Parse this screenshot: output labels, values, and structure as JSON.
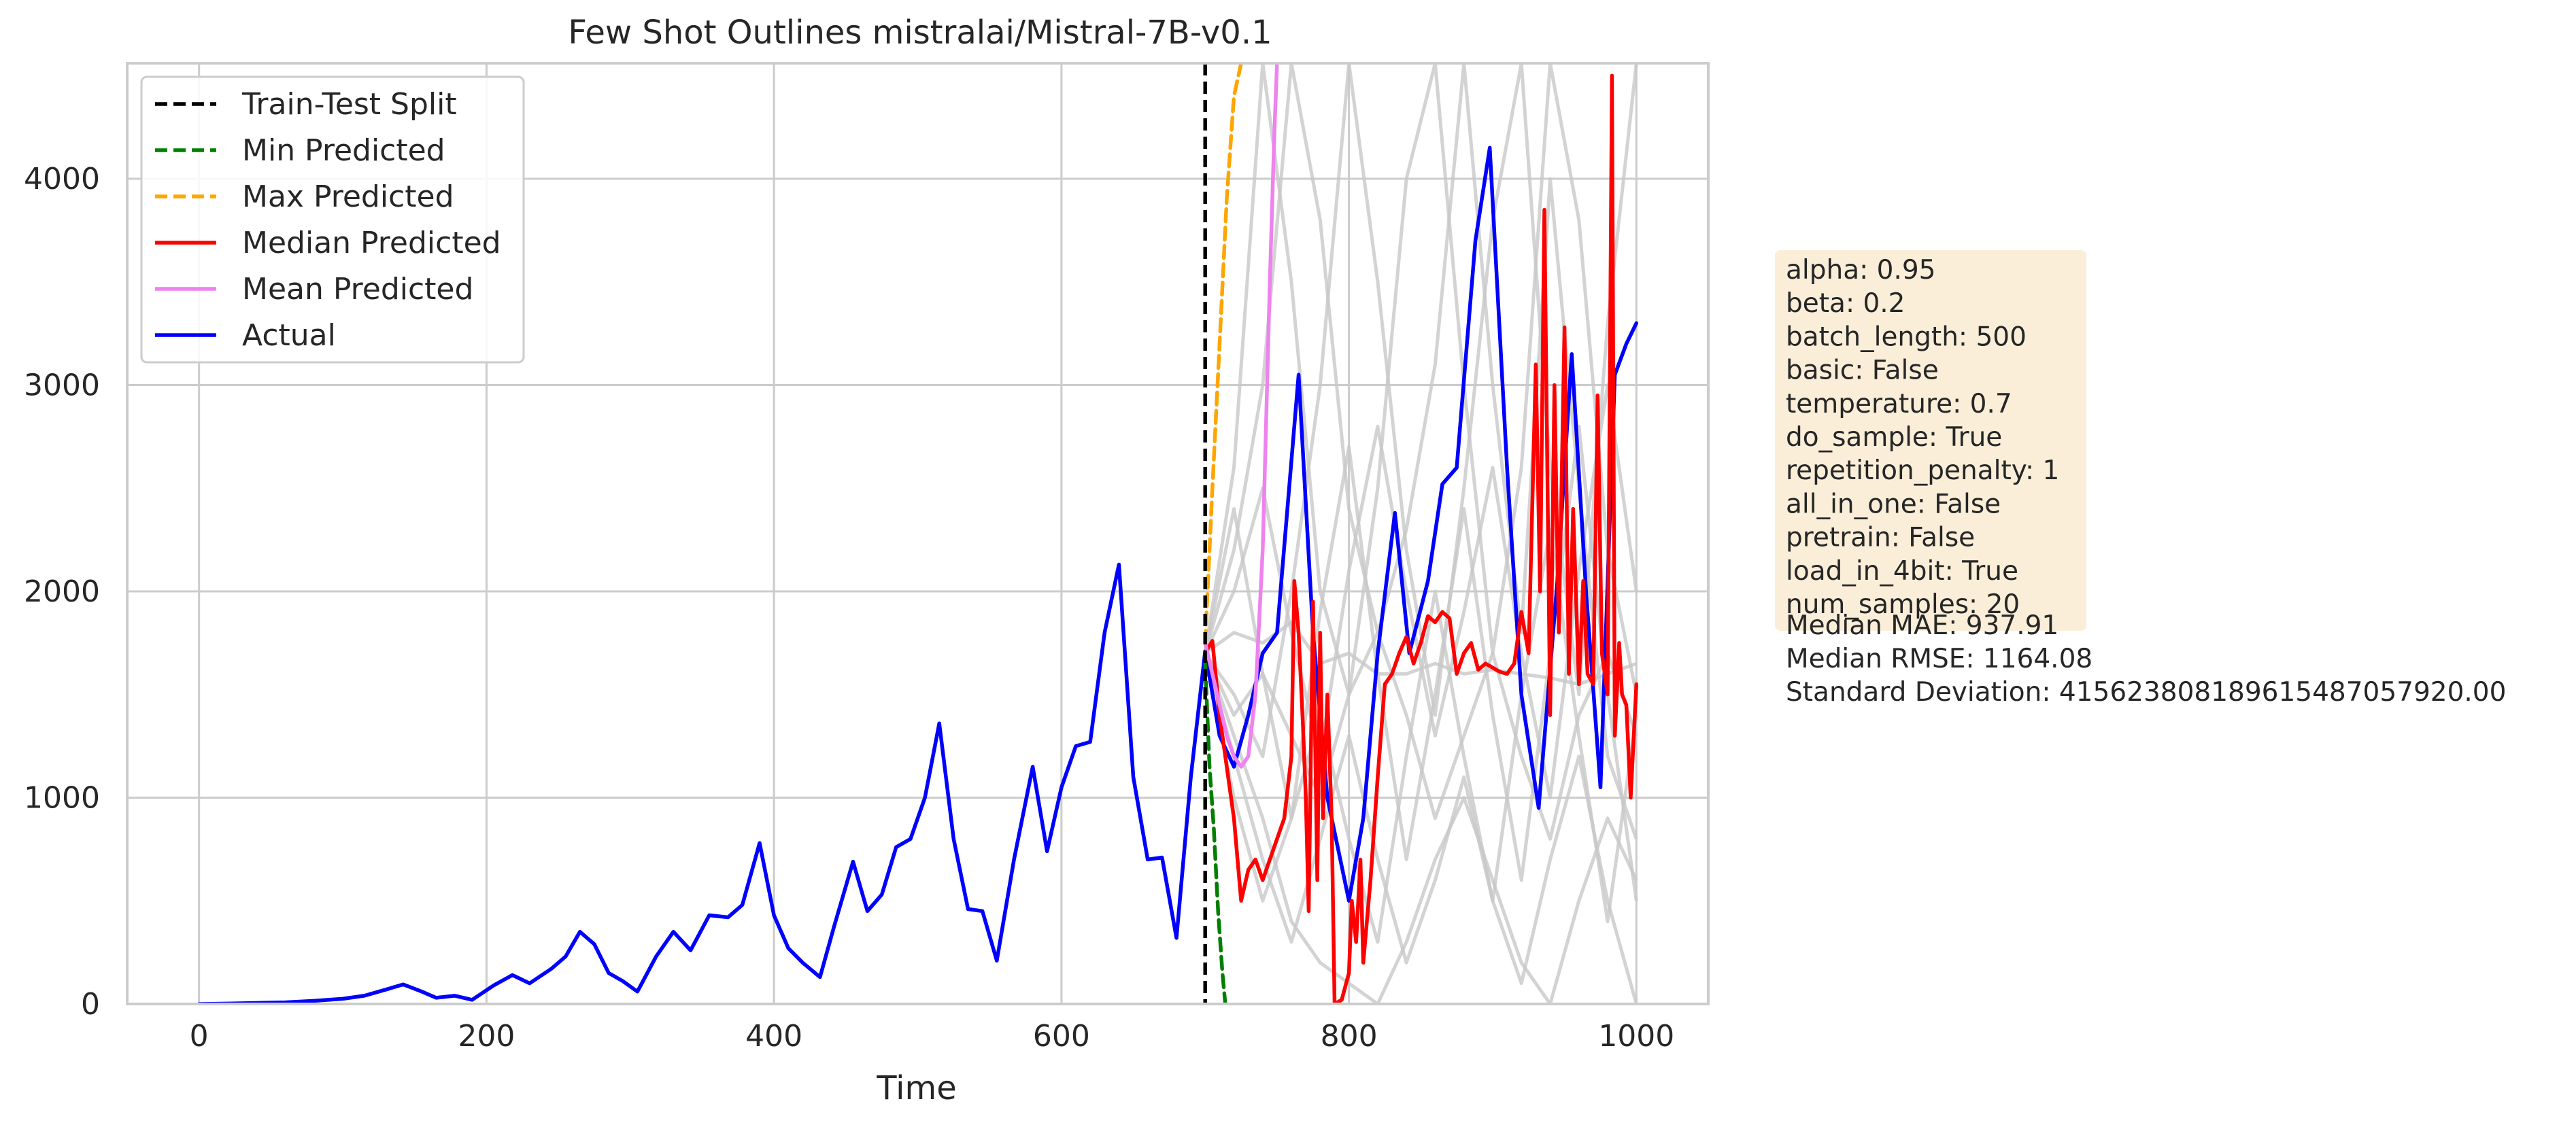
{
  "chart_data": {
    "type": "line",
    "title": "Few Shot Outlines mistralai/Mistral-7B-v0.1",
    "xlabel": "Time",
    "ylabel": "",
    "xlim": [
      -50,
      1050
    ],
    "ylim": [
      0,
      4560
    ],
    "xticks": [
      0,
      200,
      400,
      600,
      800,
      1000
    ],
    "yticks": [
      0,
      1000,
      2000,
      3000,
      4000
    ],
    "grid": true,
    "legend_position": "top-left",
    "split_x": 700,
    "legend": [
      {
        "label": "Train-Test Split",
        "color": "#000000",
        "style": "dashed"
      },
      {
        "label": "Min Predicted",
        "color": "#008000",
        "style": "dashed"
      },
      {
        "label": "Max Predicted",
        "color": "#ffa500",
        "style": "dashed"
      },
      {
        "label": "Median Predicted",
        "color": "#ff0000",
        "style": "solid"
      },
      {
        "label": "Mean Predicted",
        "color": "#ee82ee",
        "style": "solid"
      },
      {
        "label": "Actual",
        "color": "#0000ff",
        "style": "solid"
      }
    ],
    "series": [
      {
        "name": "Actual",
        "color": "#0000ff",
        "x": [
          0,
          20,
          40,
          60,
          80,
          100,
          115,
          130,
          142,
          155,
          165,
          178,
          190,
          205,
          218,
          230,
          245,
          255,
          265,
          275,
          285,
          295,
          305,
          318,
          330,
          342,
          355,
          368,
          378,
          390,
          400,
          410,
          420,
          432,
          442,
          455,
          465,
          475,
          485,
          495,
          505,
          515,
          525,
          535,
          545,
          555,
          567,
          580,
          590,
          600,
          610,
          620,
          630,
          640,
          650,
          660,
          670,
          680,
          690,
          700,
          710,
          720,
          730,
          740,
          750,
          765,
          775,
          785,
          800,
          810,
          820,
          832,
          842,
          855,
          865,
          875,
          888,
          898,
          910,
          920,
          932,
          945,
          955,
          965,
          975,
          985,
          993,
          1000
        ],
        "y": [
          0,
          2,
          5,
          8,
          15,
          25,
          40,
          70,
          95,
          60,
          30,
          40,
          20,
          90,
          140,
          100,
          170,
          230,
          350,
          290,
          150,
          110,
          60,
          230,
          350,
          260,
          430,
          420,
          480,
          780,
          430,
          270,
          200,
          130,
          380,
          690,
          450,
          530,
          760,
          800,
          1000,
          1360,
          800,
          460,
          450,
          210,
          700,
          1150,
          740,
          1050,
          1250,
          1270,
          1800,
          2130,
          1100,
          700,
          710,
          320,
          1100,
          1710,
          1300,
          1150,
          1400,
          1700,
          1800,
          3050,
          1800,
          1000,
          500,
          900,
          1700,
          2380,
          1700,
          2050,
          2520,
          2600,
          3700,
          4150,
          2600,
          1500,
          950,
          2050,
          3150,
          2000,
          1050,
          3050,
          3200,
          3300
        ]
      },
      {
        "name": "Median Predicted",
        "color": "#ff0000",
        "x": [
          700,
          705,
          710,
          715,
          720,
          725,
          730,
          735,
          740,
          745,
          750,
          755,
          760,
          762,
          765,
          768,
          770,
          772,
          775,
          778,
          780,
          782,
          785,
          788,
          790,
          795,
          800,
          802,
          805,
          808,
          810,
          815,
          820,
          825,
          830,
          835,
          840,
          845,
          850,
          855,
          860,
          865,
          870,
          875,
          880,
          885,
          890,
          895,
          900,
          905,
          910,
          915,
          920,
          925,
          930,
          933,
          936,
          940,
          943,
          946,
          950,
          953,
          956,
          960,
          963,
          966,
          970,
          973,
          976,
          980,
          983,
          985,
          988,
          990,
          993,
          996,
          1000
        ],
        "y": [
          1700,
          1760,
          1400,
          1150,
          900,
          500,
          650,
          700,
          600,
          700,
          800,
          900,
          1200,
          2050,
          1800,
          1350,
          1000,
          450,
          1950,
          600,
          1800,
          900,
          1500,
          900,
          0,
          20,
          150,
          500,
          300,
          700,
          200,
          600,
          1100,
          1550,
          1600,
          1700,
          1780,
          1650,
          1750,
          1880,
          1850,
          1900,
          1870,
          1600,
          1700,
          1750,
          1620,
          1650,
          1630,
          1610,
          1600,
          1650,
          1900,
          1700,
          3100,
          2000,
          3850,
          1400,
          3000,
          1800,
          3280,
          1600,
          2400,
          1550,
          2050,
          1600,
          1550,
          2950,
          1700,
          1500,
          4500,
          1300,
          1750,
          1500,
          1450,
          1000,
          1550
        ]
      },
      {
        "name": "Mean Predicted",
        "color": "#ee82ee",
        "x": [
          700,
          705,
          710,
          715,
          720,
          725,
          730,
          735,
          740,
          745,
          748,
          750
        ],
        "y": [
          1750,
          1600,
          1450,
          1300,
          1200,
          1150,
          1200,
          1500,
          2200,
          3500,
          4200,
          4560
        ]
      },
      {
        "name": "Max Predicted",
        "color": "#ffa500",
        "x": [
          700,
          705,
          710,
          715,
          720,
          725,
          726
        ],
        "y": [
          1750,
          2500,
          3200,
          3900,
          4400,
          4560,
          4560
        ]
      },
      {
        "name": "Min Predicted",
        "color": "#008000",
        "x": [
          700,
          703,
          706,
          709,
          712,
          714
        ],
        "y": [
          1650,
          1150,
          850,
          450,
          150,
          0
        ]
      }
    ],
    "samples": [
      {
        "x": [
          700,
          720,
          740,
          760,
          780,
          800,
          820,
          840,
          860,
          880,
          900,
          920,
          940,
          960,
          980,
          1000
        ],
        "y": [
          1700,
          2200,
          3000,
          4560,
          3800,
          2400,
          1800,
          2300,
          3100,
          4560,
          3000,
          1800,
          4000,
          2500,
          1200,
          800
        ]
      },
      {
        "x": [
          700,
          720,
          740,
          760,
          780,
          800,
          820,
          840,
          860,
          880,
          900,
          920,
          940,
          960,
          980,
          1000
        ],
        "y": [
          1700,
          1300,
          900,
          400,
          200,
          100,
          0,
          300,
          700,
          1000,
          600,
          200,
          0,
          500,
          900,
          600
        ]
      },
      {
        "x": [
          700,
          720,
          740,
          760,
          780,
          800,
          820,
          840,
          860,
          880,
          900,
          920,
          940,
          960,
          980,
          1000
        ],
        "y": [
          1700,
          1800,
          1750,
          1850,
          1650,
          1700,
          1600,
          1600,
          1650,
          1600,
          1620,
          1600,
          1580,
          1550,
          1600,
          1650
        ]
      },
      {
        "x": [
          700,
          720,
          740,
          760,
          780,
          800,
          820,
          840,
          860,
          880,
          900,
          920,
          940,
          960,
          980,
          1000
        ],
        "y": [
          1700,
          2600,
          4560,
          3500,
          2000,
          1500,
          2500,
          4000,
          4560,
          3000,
          1700,
          2600,
          4560,
          3800,
          2200,
          1500
        ]
      },
      {
        "x": [
          700,
          720,
          740,
          760,
          780,
          800,
          820,
          840,
          860,
          880,
          900,
          920,
          940,
          960,
          980,
          1000
        ],
        "y": [
          1700,
          1000,
          500,
          900,
          1400,
          800,
          300,
          1200,
          2000,
          1200,
          500,
          1500,
          2300,
          1300,
          400,
          1400
        ]
      },
      {
        "x": [
          700,
          720,
          740,
          760,
          780,
          800,
          820,
          840,
          860,
          880,
          900,
          920,
          940,
          960,
          980,
          1000
        ],
        "y": [
          1700,
          2000,
          2500,
          1800,
          1200,
          2100,
          2800,
          2000,
          1300,
          1900,
          2600,
          1700,
          1000,
          2100,
          3000,
          2000
        ]
      },
      {
        "x": [
          700,
          720,
          740,
          760,
          780,
          800,
          820,
          840,
          860,
          880,
          900,
          920,
          940,
          960,
          980,
          1000
        ],
        "y": [
          1700,
          1500,
          1200,
          2000,
          3000,
          4560,
          3500,
          2200,
          1400,
          2500,
          3800,
          4560,
          2600,
          1500,
          3300,
          4560
        ]
      },
      {
        "x": [
          700,
          720,
          740,
          760,
          780,
          800,
          820,
          840,
          860,
          880,
          900,
          920,
          940,
          960,
          980,
          1000
        ],
        "y": [
          1700,
          1400,
          1600,
          1300,
          1000,
          1500,
          1800,
          1400,
          900,
          1300,
          1700,
          1200,
          800,
          1400,
          1700,
          1300
        ]
      },
      {
        "x": [
          700,
          720,
          740,
          760,
          780,
          800,
          820,
          840,
          860,
          880,
          900,
          920,
          940,
          960,
          980,
          1000
        ],
        "y": [
          1700,
          2400,
          1600,
          900,
          1900,
          2700,
          1600,
          700,
          1500,
          2400,
          1400,
          600,
          1700,
          2800,
          1500,
          500
        ]
      },
      {
        "x": [
          700,
          720,
          740,
          760,
          780,
          800,
          820,
          840,
          860,
          880,
          900,
          920,
          940,
          960,
          980,
          1000
        ],
        "y": [
          1700,
          1200,
          700,
          300,
          800,
          1300,
          700,
          200,
          600,
          1100,
          500,
          100,
          700,
          1200,
          500,
          0
        ]
      }
    ],
    "info_box": [
      "alpha: 0.95",
      "beta: 0.2",
      "batch_length: 500",
      "basic: False",
      "temperature: 0.7",
      "do_sample: True",
      "repetition_penalty: 1",
      "all_in_one: False",
      "pretrain: False",
      "load_in_4bit: True",
      "num_samples: 20"
    ],
    "stats": [
      "Median MAE: 937.91",
      "Median RMSE: 1164.08",
      "Standard Deviation: 415623808189615487057920.00"
    ],
    "colors": {
      "grid": "#cccccc",
      "samples": "#c8c8c8",
      "info_box_bg": "#f5deb3"
    }
  }
}
